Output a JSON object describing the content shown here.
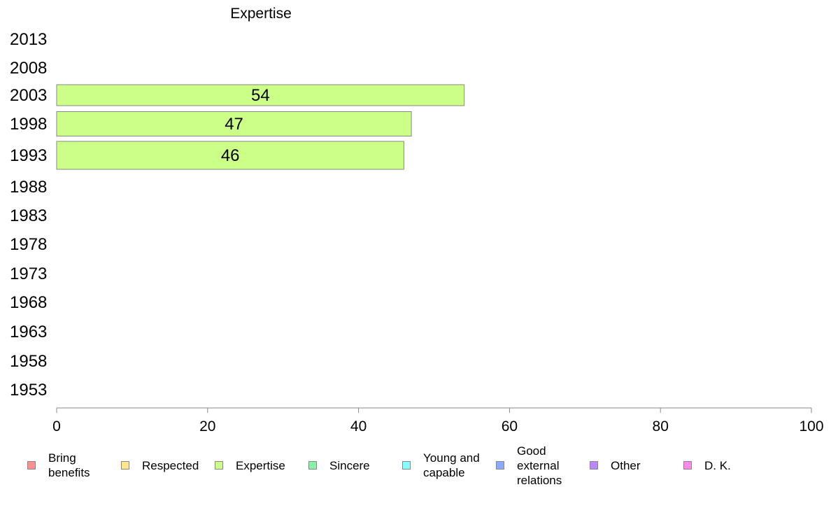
{
  "chart_data": {
    "type": "bar",
    "orientation": "horizontal",
    "title": "Expertise",
    "xlabel": "",
    "ylabel": "",
    "xlim": [
      0,
      100
    ],
    "x_ticks": [
      "0",
      "20",
      "40",
      "60",
      "80",
      "100"
    ],
    "categories": [
      "2013",
      "2008",
      "2003",
      "1998",
      "1993",
      "1988",
      "1983",
      "1978",
      "1973",
      "1968",
      "1963",
      "1958",
      "1953"
    ],
    "series": [
      {
        "name": "Expertise",
        "color": "#ccff88",
        "values": [
          null,
          null,
          54,
          47,
          46,
          null,
          null,
          null,
          null,
          null,
          null,
          null,
          null
        ],
        "labels": [
          "",
          "",
          "54",
          "47",
          "46",
          "",
          "",
          "",
          "",
          "",
          "",
          "",
          ""
        ]
      }
    ],
    "grid": false,
    "legend_position": "bottom"
  },
  "legend": [
    {
      "label": "Bring\nbenefits",
      "color": "#ff8f8f"
    },
    {
      "label": "Respected",
      "color": "#ffe68a"
    },
    {
      "label": "Expertise",
      "color": "#ccff88"
    },
    {
      "label": "Sincere",
      "color": "#88f2a8"
    },
    {
      "label": "Young and\ncapable",
      "color": "#88ffff"
    },
    {
      "label": "Good\nexternal\nrelations",
      "color": "#88aaff"
    },
    {
      "label": "Other",
      "color": "#bb88ff"
    },
    {
      "label": "D. K.",
      "color": "#ff88ee"
    }
  ]
}
